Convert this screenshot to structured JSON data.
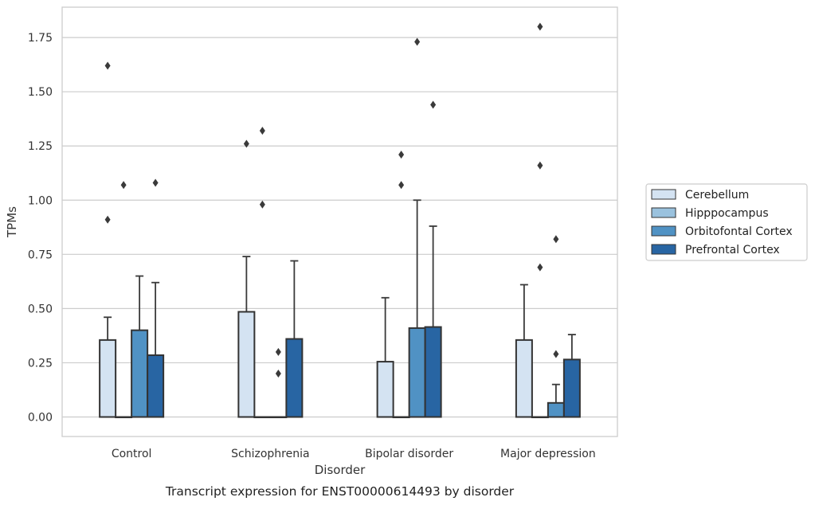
{
  "chart_data": {
    "type": "bar",
    "categories": [
      "Control",
      "Schizophrenia",
      "Bipolar disorder",
      "Major depression"
    ],
    "series": [
      {
        "name": "Cerebellum",
        "color": "#d4e3f2",
        "values": [
          0.355,
          0.485,
          0.255,
          0.355
        ],
        "err_upper": [
          0.46,
          0.74,
          0.55,
          0.61
        ],
        "outliers": [
          [
            0.91,
            1.62
          ],
          [
            1.26
          ],
          [],
          []
        ]
      },
      {
        "name": "Hipppocampus",
        "color": "#9ac2de",
        "values": [
          0.0,
          0.0,
          0.0,
          0.0
        ],
        "err_upper": [
          0.0,
          0.0,
          0.0,
          0.0
        ],
        "outliers": [
          [
            1.07
          ],
          [
            0.98,
            1.32
          ],
          [
            1.07,
            1.21
          ],
          [
            0.69,
            1.16,
            1.8
          ]
        ]
      },
      {
        "name": "Orbitofontal Cortex",
        "color": "#5092c4",
        "values": [
          0.4,
          0.0,
          0.41,
          0.065
        ],
        "err_upper": [
          0.65,
          0.0,
          1.0,
          0.15
        ],
        "outliers": [
          [],
          [
            0.2,
            0.3
          ],
          [
            1.73
          ],
          [
            0.29,
            0.82
          ]
        ]
      },
      {
        "name": "Prefrontal Cortex",
        "color": "#2865a3",
        "values": [
          0.285,
          0.36,
          0.415,
          0.265
        ],
        "err_upper": [
          0.62,
          0.72,
          0.88,
          0.38
        ],
        "outliers": [
          [
            1.08
          ],
          [],
          [
            1.44
          ],
          []
        ]
      }
    ],
    "xlabel": "Disorder",
    "ylabel": "TPMs",
    "ylim": [
      -0.09,
      1.89
    ],
    "yticks": [
      "0.00",
      "0.25",
      "0.50",
      "0.75",
      "1.00",
      "1.25",
      "1.50",
      "1.75"
    ],
    "grid": true,
    "legend_position": "right",
    "caption": "Transcript expression for ENST00000614493 by disorder"
  }
}
